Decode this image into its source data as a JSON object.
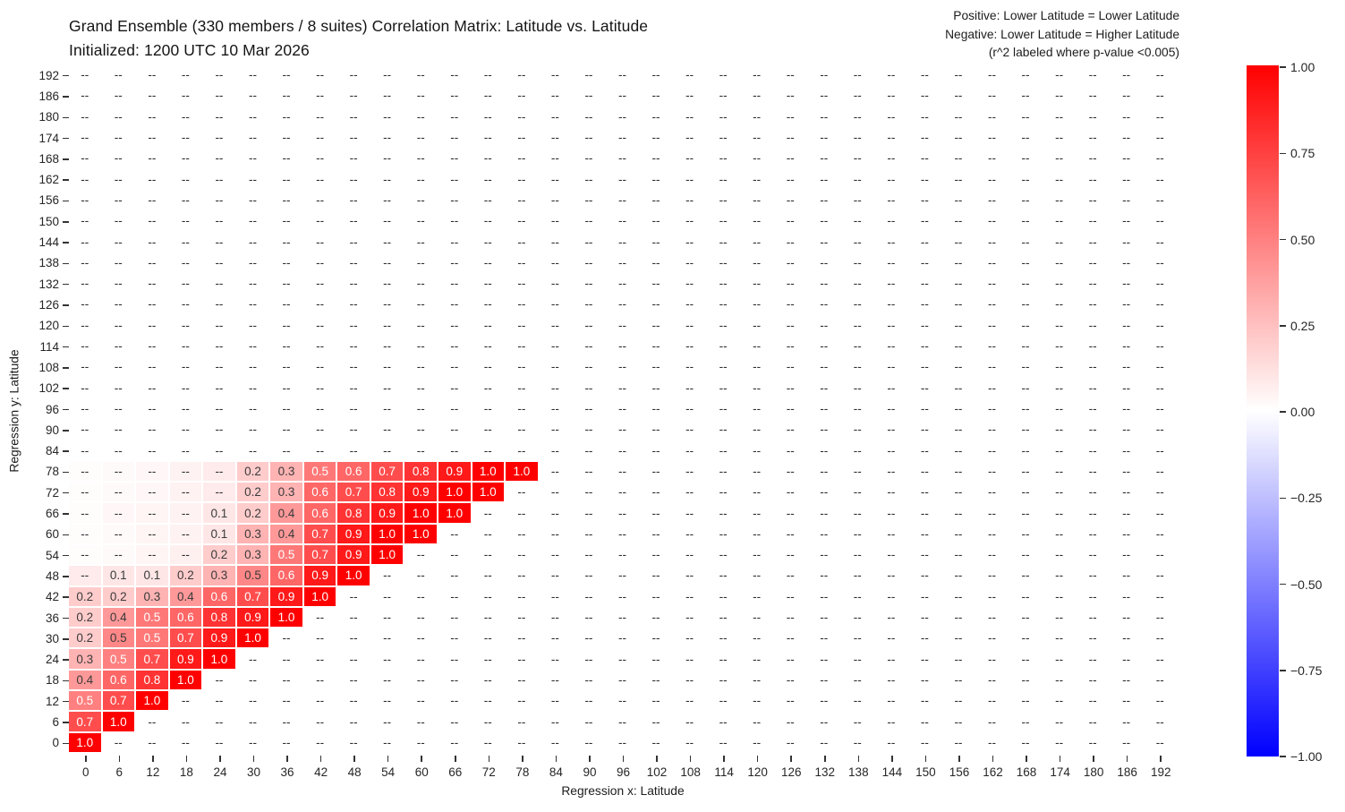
{
  "header": {
    "title_line1": "Grand Ensemble (330 members / 8 suites) Correlation Matrix: Latitude vs. Latitude",
    "title_line2": "Initialized: 1200 UTC 10 Mar 2026",
    "note_line1": "Positive: Lower Latitude = Lower Latitude",
    "note_line2": "Negative: Lower Latitude = Higher Latitude",
    "note_line3": "(r^2 labeled where p-value <0.005)"
  },
  "axes": {
    "xlabel": "Regression x: Latitude",
    "ylabel": "Regression y: Latitude"
  },
  "colorbar": {
    "ticks": [
      "1.00",
      "0.75",
      "0.50",
      "0.25",
      "0.00",
      "−0.25",
      "−0.50",
      "−0.75",
      "−1.00"
    ],
    "vmax_color": "#ff0000",
    "mid_color": "#ffffff",
    "vmin_color": "#0000ff"
  },
  "chart_data": {
    "type": "heatmap",
    "title": "Grand Ensemble (330 members / 8 suites) Correlation Matrix: Latitude vs. Latitude",
    "subtitle": "Initialized: 1200 UTC 10 Mar 2026",
    "xlabel": "Regression x: Latitude",
    "ylabel": "Regression y: Latitude",
    "colormap": "bwr",
    "vmin": -1.0,
    "vmax": 1.0,
    "legend_position": "right-colorbar",
    "empty_label": "--",
    "x": [
      0,
      6,
      12,
      18,
      24,
      30,
      36,
      42,
      48,
      54,
      60,
      66,
      72,
      78,
      84,
      90,
      96,
      102,
      108,
      114,
      120,
      126,
      132,
      138,
      144,
      150,
      156,
      162,
      168,
      174,
      180,
      186,
      192
    ],
    "y": [
      0,
      6,
      12,
      18,
      24,
      30,
      36,
      42,
      48,
      54,
      60,
      66,
      72,
      78,
      84,
      90,
      96,
      102,
      108,
      114,
      120,
      126,
      132,
      138,
      144,
      150,
      156,
      162,
      168,
      174,
      180,
      186,
      192
    ],
    "rows": [
      {
        "lat": 0,
        "values": [
          1.0
        ],
        "labels": [
          "1.0"
        ],
        "white": [
          1
        ]
      },
      {
        "lat": 6,
        "values": [
          0.7,
          1.0
        ],
        "labels": [
          "0.7",
          "1.0"
        ],
        "white": [
          1,
          1
        ]
      },
      {
        "lat": 12,
        "values": [
          0.5,
          0.7,
          1.0
        ],
        "labels": [
          "0.5",
          "0.7",
          "1.0"
        ],
        "white": [
          1,
          1,
          1
        ]
      },
      {
        "lat": 18,
        "values": [
          0.4,
          0.6,
          0.8,
          1.0
        ],
        "labels": [
          "0.4",
          "0.6",
          "0.8",
          "1.0"
        ],
        "white": [
          0,
          1,
          1,
          1
        ]
      },
      {
        "lat": 24,
        "values": [
          0.3,
          0.5,
          0.7,
          0.9,
          1.0
        ],
        "labels": [
          "0.3",
          "0.5",
          "0.7",
          "0.9",
          "1.0"
        ],
        "white": [
          0,
          1,
          1,
          1,
          1
        ]
      },
      {
        "lat": 30,
        "values": [
          0.2,
          0.47,
          0.53,
          0.7,
          0.9,
          1.0
        ],
        "labels": [
          "0.2",
          "0.5",
          "0.5",
          "0.7",
          "0.9",
          "1.0"
        ],
        "white": [
          0,
          0,
          1,
          1,
          1,
          1
        ]
      },
      {
        "lat": 36,
        "values": [
          0.2,
          0.4,
          0.53,
          0.6,
          0.8,
          0.9,
          1.0
        ],
        "labels": [
          "0.2",
          "0.4",
          "0.5",
          "0.6",
          "0.8",
          "0.9",
          "1.0"
        ],
        "white": [
          0,
          0,
          1,
          1,
          1,
          1,
          1
        ]
      },
      {
        "lat": 42,
        "values": [
          0.2,
          0.2,
          0.3,
          0.4,
          0.6,
          0.7,
          0.9,
          1.0
        ],
        "labels": [
          "0.2",
          "0.2",
          "0.3",
          "0.4",
          "0.6",
          "0.7",
          "0.9",
          "1.0"
        ],
        "white": [
          0,
          0,
          0,
          0,
          1,
          1,
          1,
          1
        ]
      },
      {
        "lat": 48,
        "values": [
          0.08,
          0.1,
          0.1,
          0.2,
          0.3,
          0.47,
          0.6,
          0.9,
          1.0
        ],
        "labels": [
          "--",
          "0.1",
          "0.1",
          "0.2",
          "0.3",
          "0.5",
          "0.6",
          "0.9",
          "1.0"
        ],
        "white": [
          0,
          0,
          0,
          0,
          0,
          0,
          1,
          1,
          1
        ]
      },
      {
        "lat": 54,
        "values": [
          0.01,
          0.02,
          0.04,
          0.06,
          0.2,
          0.3,
          0.53,
          0.7,
          0.9,
          1.0
        ],
        "labels": [
          "--",
          "--",
          "--",
          "--",
          "0.2",
          "0.3",
          "0.5",
          "0.7",
          "0.9",
          "1.0"
        ],
        "white": [
          0,
          0,
          0,
          0,
          0,
          0,
          1,
          1,
          1,
          1
        ]
      },
      {
        "lat": 60,
        "values": [
          0.01,
          0.02,
          0.04,
          0.05,
          0.1,
          0.3,
          0.4,
          0.7,
          0.9,
          1.0,
          1.0
        ],
        "labels": [
          "--",
          "--",
          "--",
          "--",
          "0.1",
          "0.3",
          "0.4",
          "0.7",
          "0.9",
          "1.0",
          "1.0"
        ],
        "white": [
          0,
          0,
          0,
          0,
          0,
          0,
          0,
          1,
          1,
          1,
          1
        ]
      },
      {
        "lat": 66,
        "values": [
          0.01,
          0.03,
          0.04,
          0.05,
          0.1,
          0.2,
          0.4,
          0.6,
          0.8,
          0.9,
          1.0,
          1.0
        ],
        "labels": [
          "--",
          "--",
          "--",
          "--",
          "0.1",
          "0.2",
          "0.4",
          "0.6",
          "0.8",
          "0.9",
          "1.0",
          "1.0"
        ],
        "white": [
          0,
          0,
          0,
          0,
          0,
          0,
          0,
          1,
          1,
          1,
          1,
          1
        ]
      },
      {
        "lat": 72,
        "values": [
          0.01,
          0.02,
          0.03,
          0.05,
          0.08,
          0.2,
          0.3,
          0.6,
          0.7,
          0.8,
          0.9,
          1.0,
          1.0
        ],
        "labels": [
          "--",
          "--",
          "--",
          "--",
          "--",
          "0.2",
          "0.3",
          "0.6",
          "0.7",
          "0.8",
          "0.9",
          "1.0",
          "1.0"
        ],
        "white": [
          0,
          0,
          0,
          0,
          0,
          0,
          0,
          1,
          1,
          1,
          1,
          1,
          1
        ]
      },
      {
        "lat": 78,
        "values": [
          0.01,
          0.02,
          0.03,
          0.05,
          0.08,
          0.2,
          0.3,
          0.53,
          0.6,
          0.7,
          0.8,
          0.9,
          1.0,
          1.0
        ],
        "labels": [
          "--",
          "--",
          "--",
          "--",
          "--",
          "0.2",
          "0.3",
          "0.5",
          "0.6",
          "0.7",
          "0.8",
          "0.9",
          "1.0",
          "1.0"
        ],
        "white": [
          0,
          0,
          0,
          0,
          0,
          0,
          0,
          1,
          1,
          1,
          1,
          1,
          1,
          1
        ]
      }
    ]
  }
}
